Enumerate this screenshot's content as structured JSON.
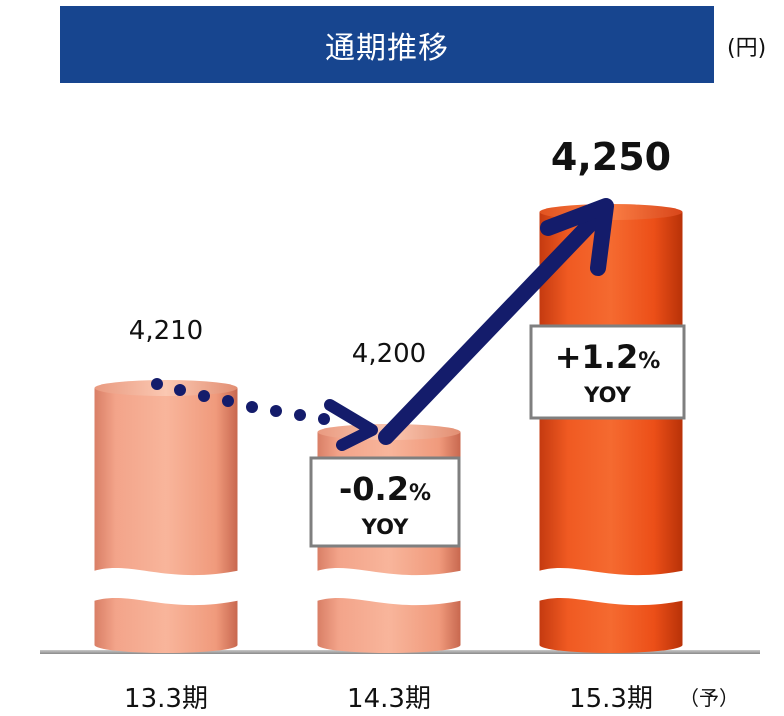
{
  "header": {
    "title": "通期推移",
    "unit": "(円)"
  },
  "chart_data": {
    "type": "bar",
    "title": "通期推移",
    "unit": "(円)",
    "categories": [
      "13.3期",
      "14.3期",
      "15.3期"
    ],
    "category_suffix": [
      "",
      "",
      "（予）"
    ],
    "values": [
      4210,
      4200,
      4250
    ],
    "value_labels": [
      "4,210",
      "4,200",
      "4,250"
    ],
    "yoy": [
      {
        "value": "-0.2",
        "pct": "%",
        "label": "YOY"
      },
      {
        "value": "+1.2",
        "pct": "%",
        "label": "YOY"
      }
    ],
    "axis_break": true,
    "colors": {
      "actual": "#f2a07f",
      "forecast": "#f0541e",
      "arrow": "#141c6b",
      "title_bg": "#17458f"
    }
  }
}
